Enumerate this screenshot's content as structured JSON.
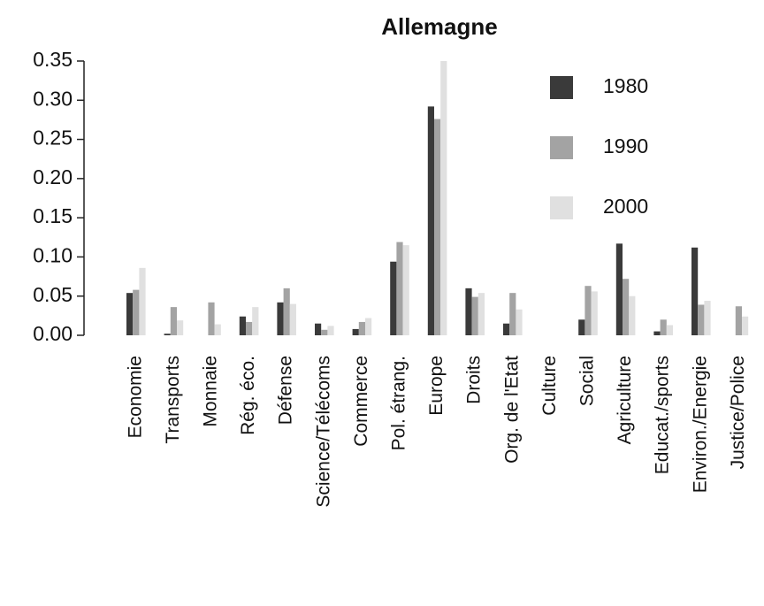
{
  "chart_data": {
    "type": "bar",
    "title": "Allemagne",
    "categories": [
      "Economie",
      "Transports",
      "Monnaie",
      "Rég. éco.",
      "Défense",
      "Science/Télécoms",
      "Commerce",
      "Pol. étrang.",
      "Europe",
      "Droits",
      "Org. de l'Etat",
      "Culture",
      "Social",
      "Agriculture",
      "Educat./sports",
      "Environ./Energie",
      "Justice/Police"
    ],
    "series": [
      {
        "name": "1980",
        "color": "#3a3a3a",
        "values": [
          0.054,
          0.002,
          0,
          0.024,
          0.042,
          0.015,
          0.008,
          0.094,
          0.292,
          0.06,
          0.015,
          0,
          0.02,
          0.117,
          0.005,
          0.112,
          0
        ]
      },
      {
        "name": "1990",
        "color": "#a3a3a3",
        "values": [
          0.058,
          0.036,
          0.042,
          0.017,
          0.06,
          0.007,
          0.017,
          0.119,
          0.276,
          0.049,
          0.054,
          0,
          0.063,
          0.072,
          0.02,
          0.039,
          0.037
        ]
      },
      {
        "name": "2000",
        "color": "#e0e0e0",
        "values": [
          0.086,
          0.019,
          0.014,
          0.036,
          0.04,
          0.012,
          0.022,
          0.115,
          0.35,
          0.054,
          0.033,
          0,
          0.056,
          0.05,
          0.013,
          0.044,
          0.024
        ]
      }
    ],
    "ylim": [
      0,
      0.35
    ],
    "yticks": [
      {
        "value": 0,
        "label": "0.00"
      },
      {
        "value": 0.05,
        "label": "0.05"
      },
      {
        "value": 0.1,
        "label": "0.10"
      },
      {
        "value": 0.15,
        "label": "0.15"
      },
      {
        "value": 0.2,
        "label": "0.20"
      },
      {
        "value": 0.25,
        "label": "0.25"
      },
      {
        "value": 0.3,
        "label": "0.30"
      },
      {
        "value": 0.35,
        "label": "0.35"
      }
    ],
    "legend": "topright"
  }
}
